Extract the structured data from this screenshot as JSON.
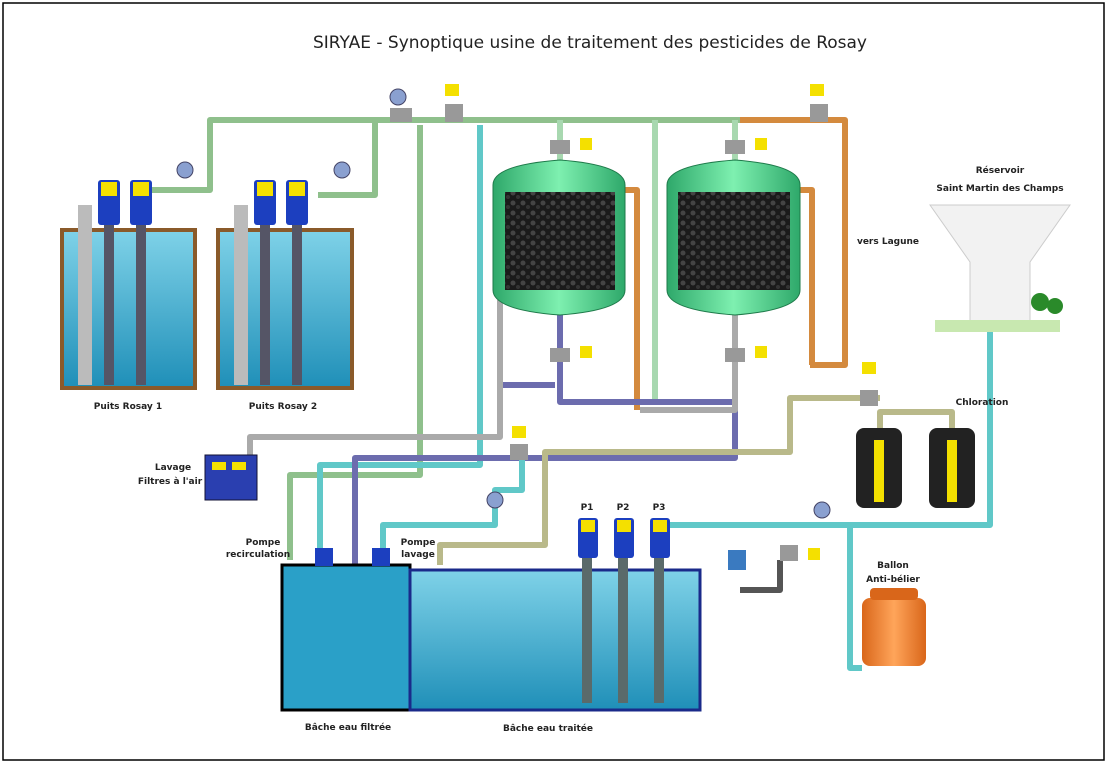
{
  "title": "SIRYAE - Synoptique usine de traitement des pesticides de Rosay",
  "wells": [
    "Puits Rosay 1",
    "Puits Rosay 2"
  ],
  "reservoir": [
    "Réservoir",
    "Saint Martin des Champs"
  ],
  "lagoon": "vers Lagune",
  "chlorination": "Chloration",
  "air_wash": [
    "Lavage",
    "Filtres à l'air"
  ],
  "recirculation_pump": [
    "Pompe",
    "recirculation"
  ],
  "wash_pump": [
    "Pompe",
    "lavage"
  ],
  "pumps": [
    "P1",
    "P2",
    "P3"
  ],
  "surge_vessel": [
    "Ballon",
    "Anti-bélier"
  ],
  "tanks": [
    "Bâche eau filtrée",
    "Bâche eau traitée"
  ]
}
